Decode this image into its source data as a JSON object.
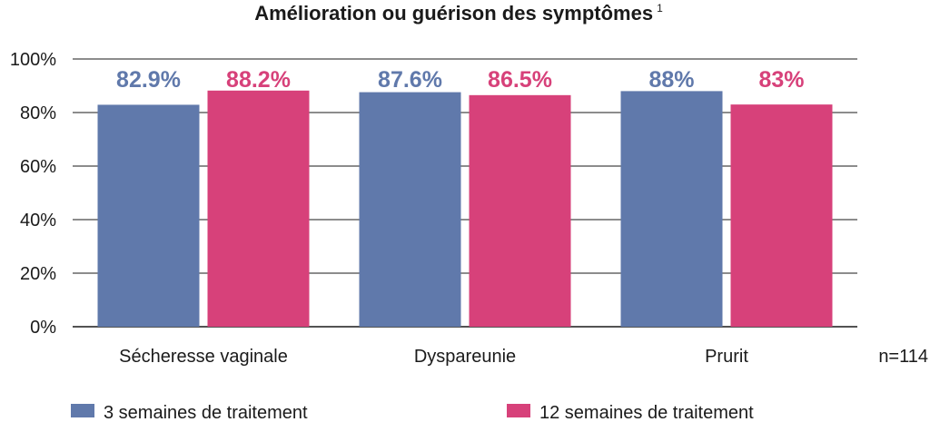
{
  "chart_data": {
    "type": "bar",
    "title": "Amélioration ou guérison des symptômes",
    "title_superscript": "1",
    "categories": [
      "Sécheresse vaginale",
      "Dyspareunie",
      "Prurit"
    ],
    "series": [
      {
        "name": "3 semaines de traitement",
        "values": [
          82.9,
          87.6,
          88
        ],
        "labels": [
          "82.9%",
          "87.6%",
          "88%"
        ],
        "color": "#6079ab"
      },
      {
        "name": "12 semaines de traitement",
        "values": [
          88.2,
          86.5,
          83
        ],
        "labels": [
          "88.2%",
          "86.5%",
          "83%"
        ],
        "color": "#d7417a"
      }
    ],
    "ylim": [
      0,
      100
    ],
    "yticks": [
      "0%",
      "20%",
      "40%",
      "60%",
      "80%",
      "100%"
    ],
    "grid": true,
    "legend": "bottom",
    "note": "n=114"
  }
}
